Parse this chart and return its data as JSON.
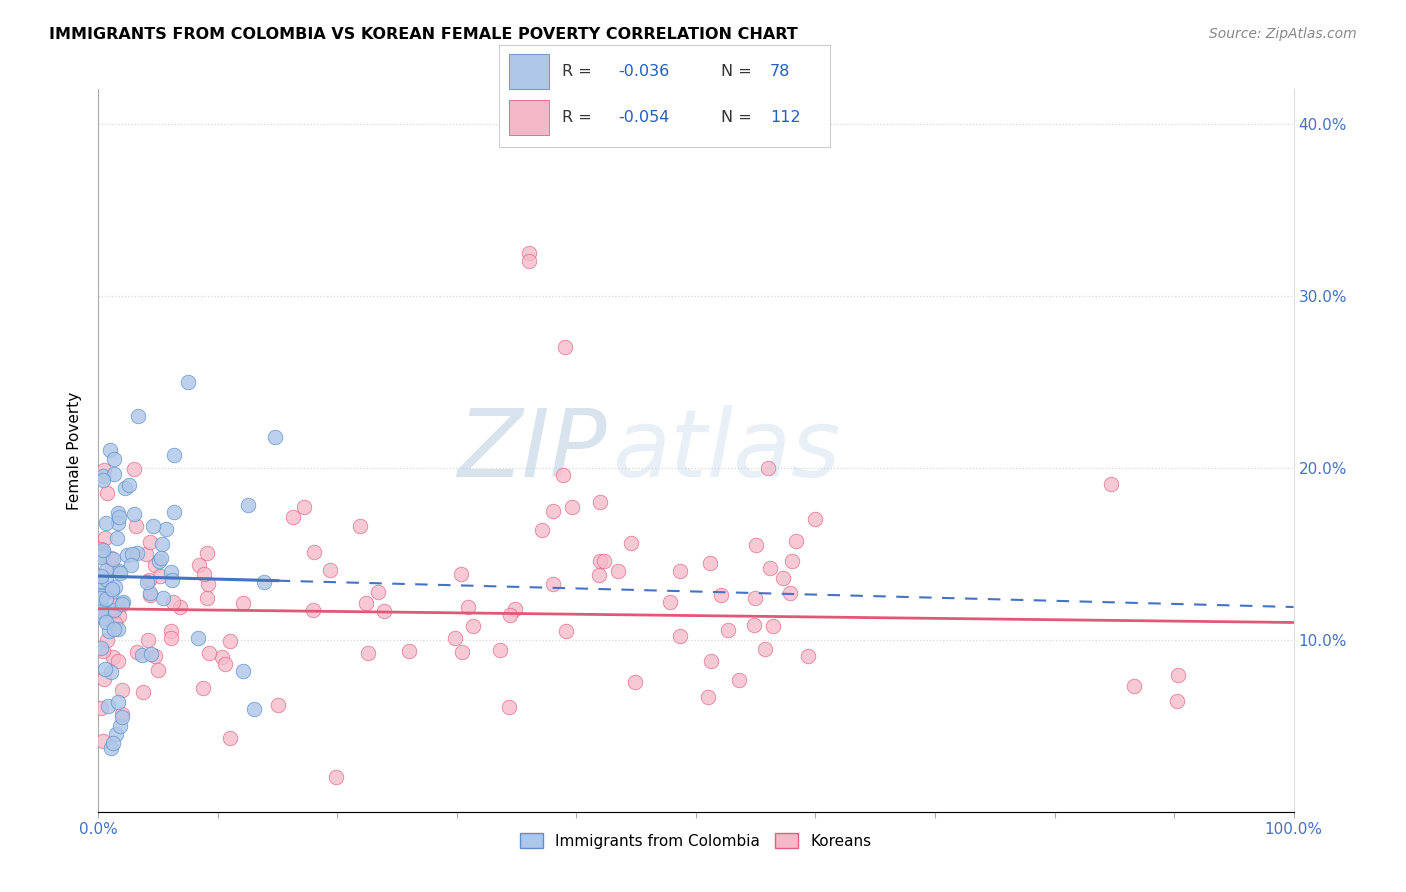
{
  "title": "IMMIGRANTS FROM COLOMBIA VS KOREAN FEMALE POVERTY CORRELATION CHART",
  "source": "Source: ZipAtlas.com",
  "ylabel": "Female Poverty",
  "xlim": [
    0,
    1.0
  ],
  "ylim": [
    0,
    0.42
  ],
  "xtick_positions": [
    0.0,
    0.1,
    0.2,
    0.3,
    0.4,
    0.5,
    0.6,
    0.7,
    0.8,
    0.9,
    1.0
  ],
  "xticklabels": [
    "0.0%",
    "",
    "",
    "",
    "",
    "",
    "",
    "",
    "",
    "",
    "100.0%"
  ],
  "ytick_positions": [
    0.0,
    0.1,
    0.2,
    0.3,
    0.4
  ],
  "yticklabels_right": [
    "",
    "10.0%",
    "20.0%",
    "30.0%",
    "40.0%"
  ],
  "color_blue_fill": "#aec6e8",
  "color_blue_edge": "#5b8fcc",
  "color_pink_fill": "#f5b8c8",
  "color_pink_edge": "#e06080",
  "color_blue_line": "#4472c4",
  "color_pink_line": "#e05878",
  "color_axis": "#4472c4",
  "color_legend_val": "#2060c0",
  "color_grid": "#cccccc",
  "watermark_zip_color": "#c8d4e8",
  "watermark_atlas_color": "#d8e4f0",
  "legend_r1": "-0.036",
  "legend_n1": "78",
  "legend_r2": "-0.054",
  "legend_n2": "112",
  "label_colombia": "Immigrants from Colombia",
  "label_korean": "Koreans",
  "blue_intercept": 0.137,
  "blue_slope": -0.018,
  "pink_intercept": 0.118,
  "pink_slope": -0.008
}
